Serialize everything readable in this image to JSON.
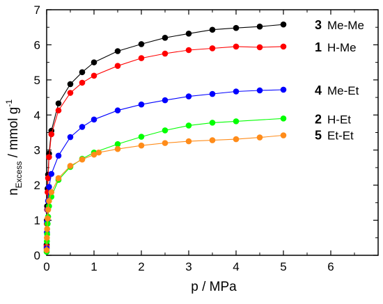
{
  "chart_data": {
    "type": "scatter",
    "xlabel": "p / MPa",
    "ylabel": {
      "main": "n",
      "subscript": "Excess",
      "unit": " / mmol g",
      "superscript": "-1"
    },
    "xlim": [
      0,
      7
    ],
    "ylim": [
      0,
      7
    ],
    "xticks": [
      "0",
      "1",
      "2",
      "3",
      "4",
      "5",
      "6"
    ],
    "yticks": [
      "0",
      "1",
      "2",
      "3",
      "4",
      "5",
      "6",
      "7"
    ],
    "grid": false,
    "series": [
      {
        "number": "3",
        "name": "Me-Me",
        "color": "#000000",
        "x": [
          0,
          0.005,
          0.01,
          0.02,
          0.03,
          0.05,
          0.1,
          0.25,
          0.5,
          0.75,
          1.0,
          1.5,
          2.0,
          2.5,
          3.0,
          3.5,
          4.0,
          4.5,
          5.0
        ],
        "y": [
          0.3,
          1.0,
          1.4,
          1.9,
          2.3,
          2.9,
          3.55,
          4.33,
          4.88,
          5.22,
          5.5,
          5.82,
          6.02,
          6.2,
          6.32,
          6.43,
          6.48,
          6.52,
          6.58
        ]
      },
      {
        "number": "1",
        "name": "H-Me",
        "color": "#ff0000",
        "x": [
          0,
          0.005,
          0.01,
          0.02,
          0.03,
          0.05,
          0.1,
          0.25,
          0.5,
          0.75,
          1.0,
          1.5,
          2.0,
          2.5,
          3.0,
          3.5,
          4.0,
          4.5,
          5.0
        ],
        "y": [
          0.25,
          0.9,
          1.3,
          1.8,
          2.2,
          2.8,
          3.45,
          4.13,
          4.63,
          4.92,
          5.12,
          5.4,
          5.62,
          5.75,
          5.85,
          5.9,
          5.95,
          5.93,
          5.95
        ]
      },
      {
        "number": "4",
        "name": "Me-Et",
        "color": "#0000ff",
        "x": [
          0,
          0.005,
          0.01,
          0.02,
          0.03,
          0.05,
          0.1,
          0.25,
          0.5,
          0.75,
          1.0,
          1.5,
          2.0,
          2.5,
          3.0,
          3.5,
          4.0,
          4.5,
          5.0
        ],
        "y": [
          0.2,
          0.65,
          0.95,
          1.3,
          1.55,
          1.95,
          2.32,
          2.84,
          3.37,
          3.66,
          3.87,
          4.13,
          4.3,
          4.42,
          4.53,
          4.6,
          4.67,
          4.7,
          4.72
        ]
      },
      {
        "number": "2",
        "name": "H-Et",
        "color": "#00ff00",
        "x": [
          0,
          0.005,
          0.01,
          0.02,
          0.03,
          0.05,
          0.1,
          0.25,
          0.5,
          0.75,
          1.0,
          1.5,
          2.0,
          2.5,
          3.0,
          3.5,
          4.0,
          5.0
        ],
        "y": [
          0.1,
          0.4,
          0.6,
          0.9,
          1.1,
          1.4,
          1.67,
          2.15,
          2.52,
          2.75,
          2.93,
          3.17,
          3.38,
          3.56,
          3.7,
          3.78,
          3.82,
          3.9
        ]
      },
      {
        "number": "5",
        "name": "Et-Et",
        "color": "#ff8c1a",
        "x": [
          0,
          0.005,
          0.01,
          0.02,
          0.03,
          0.05,
          0.1,
          0.25,
          0.5,
          0.75,
          1.0,
          1.1,
          1.5,
          2.0,
          2.5,
          3.0,
          3.5,
          4.0,
          4.5,
          5.0
        ],
        "y": [
          0.15,
          0.5,
          0.75,
          1.05,
          1.3,
          1.55,
          1.8,
          2.2,
          2.55,
          2.73,
          2.87,
          2.93,
          3.03,
          3.13,
          3.2,
          3.25,
          3.28,
          3.31,
          3.36,
          3.42
        ]
      }
    ]
  }
}
